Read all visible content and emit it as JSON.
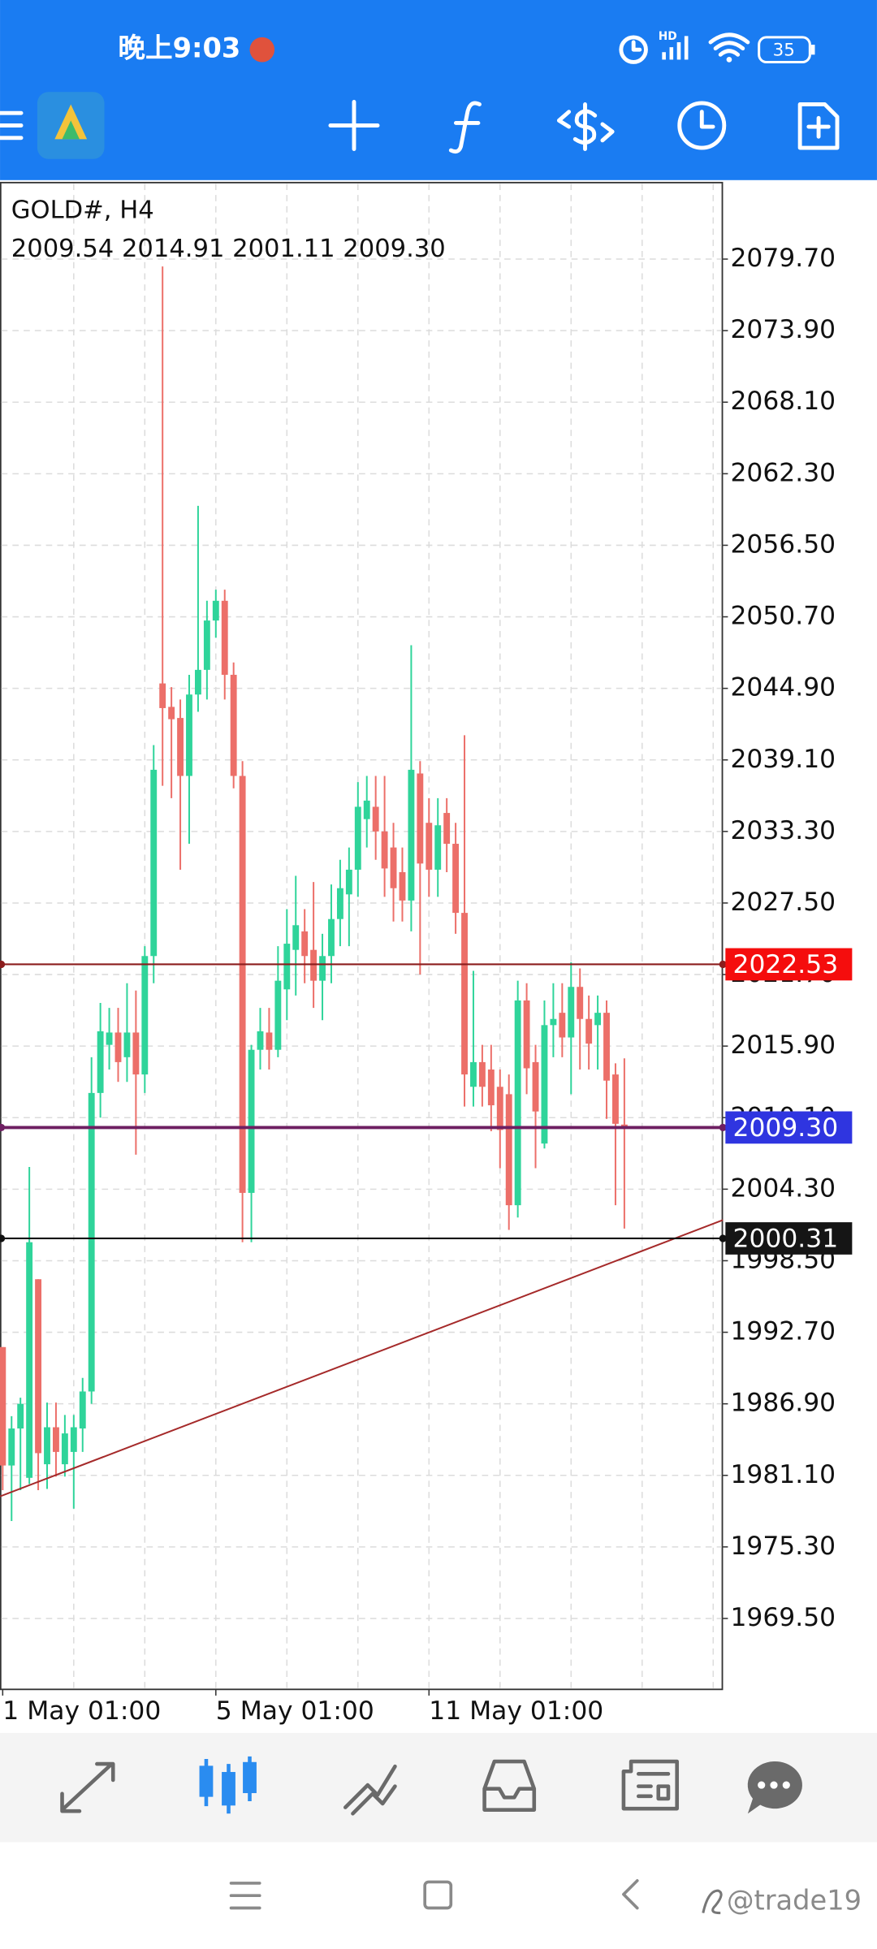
{
  "status_bar": {
    "time": "晚上9:03",
    "battery": "35"
  },
  "chart_data": {
    "type": "candlestick",
    "symbol": "GOLD#, H4",
    "quote": "2009.54 2014.91 2001.11 2009.30",
    "up_color": "#2fd49a",
    "down_color": "#ec6f69",
    "open": [
      1991.5,
      1981.9,
      1984.9,
      1980.9,
      1997.0,
      1982.0,
      1985.0,
      1982.0,
      1983.0,
      1984.9,
      1987.9,
      2012.1,
      2016.0,
      2017.0,
      2015.0,
      2017.0,
      2013.6,
      2023.2,
      2045.3,
      2043.4,
      2042.5,
      2037.8,
      2044.4,
      2046.4,
      2050.4,
      2052.0,
      2046.0,
      2037.8,
      2004.0,
      2015.6,
      2017.0,
      2015.6,
      2020.5,
      2023.7,
      2025.2,
      2023.7,
      2021.2,
      2023.2,
      2026.2,
      2028.2,
      2030.2,
      2034.3,
      2035.3,
      2033.3,
      2032.0,
      2030.0,
      2027.7,
      2038.0,
      2034.0,
      2030.2,
      2034.8,
      2032.3,
      2026.7,
      2012.6,
      2014.6,
      2014.0,
      2012.6,
      2012.0,
      2003.0,
      2019.6,
      2014.6,
      2008.0,
      2017.6,
      2018.6,
      2016.6,
      2020.7,
      2018.1,
      2017.6,
      2018.6,
      2013.6,
      2009.54
    ],
    "high": [
      1991.5,
      1985.9,
      1987.4,
      2006.1,
      1997.0,
      1987.0,
      1987.0,
      1986.0,
      1986.0,
      1989.0,
      2015.0,
      2019.4,
      2019.0,
      2019.0,
      2021.0,
      2020.4,
      2024.0,
      2040.3,
      2079.1,
      2045.0,
      2044.0,
      2046.0,
      2059.7,
      2052.0,
      2052.9,
      2052.9,
      2047.0,
      2039.0,
      2016.0,
      2019.0,
      2019.0,
      2024.0,
      2027.0,
      2029.7,
      2027.0,
      2029.2,
      2025.0,
      2029.0,
      2031.0,
      2032.0,
      2037.3,
      2037.8,
      2037.8,
      2037.8,
      2034.0,
      2032.0,
      2048.4,
      2039.0,
      2036.0,
      2036.0,
      2036.0,
      2034.0,
      2041.1,
      2022.0,
      2016.0,
      2016.0,
      2014.0,
      2013.6,
      2021.2,
      2021.0,
      2016.0,
      2019.6,
      2021.0,
      2021.0,
      2022.7,
      2022.2,
      2020.0,
      2020.0,
      2019.6,
      2014.5,
      2014.91
    ],
    "low": [
      1979.9,
      1977.4,
      1979.9,
      1980.4,
      1979.9,
      1980.0,
      1981.0,
      1981.0,
      1978.4,
      1983.0,
      1986.9,
      2010.1,
      2014.0,
      2013.0,
      2013.0,
      2007.1,
      2012.1,
      2021.0,
      2037.0,
      2036.0,
      2030.2,
      2032.3,
      2043.0,
      2044.0,
      2049.0,
      2044.0,
      2036.8,
      2000.0,
      2000.0,
      2014.0,
      2014.0,
      2015.0,
      2018.0,
      2020.0,
      2021.0,
      2019.0,
      2018.0,
      2021.0,
      2024.0,
      2024.0,
      2028.0,
      2032.0,
      2031.0,
      2028.0,
      2026.0,
      2026.0,
      2025.2,
      2021.7,
      2028.0,
      2028.0,
      2030.0,
      2025.0,
      2011.0,
      2011.0,
      2011.0,
      2009.0,
      2006.0,
      2001.0,
      2002.0,
      2012.0,
      2006.0,
      2007.6,
      2015.0,
      2015.0,
      2012.0,
      2014.0,
      2014.0,
      2014.0,
      2010.0,
      2003.0,
      2001.11
    ],
    "close": [
      1981.9,
      1984.9,
      1986.9,
      2000.0,
      1982.9,
      1985.0,
      1983.0,
      1984.5,
      1985.0,
      1987.9,
      2012.1,
      2017.1,
      2017.0,
      2014.6,
      2017.0,
      2013.6,
      2023.2,
      2038.3,
      2043.3,
      2042.4,
      2037.8,
      2044.4,
      2046.4,
      2050.4,
      2052.0,
      2046.0,
      2037.8,
      2004.0,
      2015.6,
      2017.1,
      2015.6,
      2021.2,
      2024.2,
      2025.7,
      2023.2,
      2021.2,
      2023.2,
      2026.2,
      2028.7,
      2030.2,
      2035.3,
      2035.8,
      2033.3,
      2030.3,
      2028.7,
      2027.7,
      2038.3,
      2030.7,
      2030.2,
      2033.8,
      2032.3,
      2026.7,
      2013.6,
      2014.6,
      2012.6,
      2011.1,
      2009.1,
      2003.0,
      2019.6,
      2014.1,
      2010.6,
      2017.6,
      2018.1,
      2016.6,
      2020.7,
      2018.1,
      2016.1,
      2018.6,
      2013.1,
      2009.6,
      2009.3
    ],
    "xlim": [
      -0.3,
      81.1
    ],
    "xticks": [
      {
        "value": 0,
        "label": "1 May 01:00"
      },
      {
        "value": 24,
        "label": "5 May 01:00"
      },
      {
        "value": 48,
        "label": "11 May 01:00"
      }
    ],
    "ylim": [
      1963.75,
      2085.8
    ],
    "yticks": [
      {
        "value": 2079.7,
        "label": "2079.70"
      },
      {
        "value": 2073.9,
        "label": "2073.90"
      },
      {
        "value": 2068.1,
        "label": "2068.10"
      },
      {
        "value": 2062.3,
        "label": "2062.30"
      },
      {
        "value": 2056.5,
        "label": "2056.50"
      },
      {
        "value": 2050.7,
        "label": "2050.70"
      },
      {
        "value": 2044.9,
        "label": "2044.90"
      },
      {
        "value": 2039.1,
        "label": "2039.10"
      },
      {
        "value": 2033.3,
        "label": "2033.30"
      },
      {
        "value": 2027.5,
        "label": "2027.50"
      },
      {
        "value": 2021.7,
        "label": "2021.70"
      },
      {
        "value": 2015.9,
        "label": "2015.90"
      },
      {
        "value": 2010.1,
        "label": "2010.10"
      },
      {
        "value": 2004.3,
        "label": "2004.30"
      },
      {
        "value": 1998.5,
        "label": "1998.50"
      },
      {
        "value": 1992.7,
        "label": "1992.70"
      },
      {
        "value": 1986.9,
        "label": "1986.90"
      },
      {
        "value": 1981.1,
        "label": "1981.10"
      },
      {
        "value": 1975.3,
        "label": "1975.30"
      },
      {
        "value": 1969.5,
        "label": "1969.50"
      }
    ],
    "grid": true,
    "levels": [
      {
        "value": 2022.53,
        "label": "2022.53",
        "line_color": "#8b1c1c",
        "tag_color": "#f50d0d"
      },
      {
        "value": 2009.3,
        "label": "2009.30",
        "line_color": "#6e1f62",
        "tag_color": "#2f35e0"
      },
      {
        "value": 2000.31,
        "label": "2000.31",
        "line_color": "#111111",
        "tag_color": "#151515"
      }
    ],
    "trendline": {
      "x": [
        -0.28,
        81.1
      ],
      "y": [
        1979.4,
        2001.8
      ],
      "color": "#a52a2a"
    }
  },
  "watermark": "@trade19"
}
